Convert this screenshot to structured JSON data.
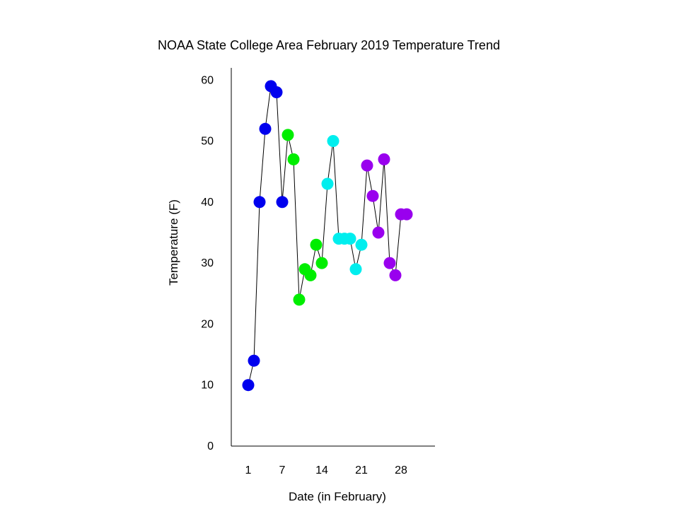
{
  "chart_data": {
    "type": "scatter",
    "title": "NOAA State College Area February 2019 Temperature Trend",
    "xlabel": "Date (in February)",
    "ylabel": "Temperature (F)",
    "xlim": [
      -2,
      34
    ],
    "ylim": [
      0,
      62
    ],
    "x_ticks": [
      {
        "value": 1,
        "label": "1"
      },
      {
        "value": 7,
        "label": "7"
      },
      {
        "value": 14,
        "label": "14"
      },
      {
        "value": 21,
        "label": "21"
      },
      {
        "value": 28,
        "label": "28"
      }
    ],
    "y_ticks": [
      {
        "value": 0,
        "label": "0"
      },
      {
        "value": 10,
        "label": "10"
      },
      {
        "value": 20,
        "label": "20"
      },
      {
        "value": 30,
        "label": "30"
      },
      {
        "value": 40,
        "label": "40"
      },
      {
        "value": 50,
        "label": "50"
      },
      {
        "value": 60,
        "label": "60"
      }
    ],
    "grid": false,
    "line_color": "#000000",
    "series": [
      {
        "color": "#0000ee",
        "x": [
          1,
          2,
          3,
          4,
          5,
          6,
          7
        ],
        "y": [
          10,
          14,
          40,
          52,
          59,
          58,
          40
        ]
      },
      {
        "color": "#00ee00",
        "x": [
          8,
          9,
          10,
          11,
          12,
          13,
          14
        ],
        "y": [
          51,
          47,
          24,
          29,
          28,
          33,
          30
        ]
      },
      {
        "color": "#00eeee",
        "x": [
          15,
          16,
          17,
          18,
          19,
          20,
          21
        ],
        "y": [
          43,
          50,
          34,
          34,
          34,
          29,
          33
        ]
      },
      {
        "color": "#9900ee",
        "x": [
          22,
          23,
          24,
          25,
          26,
          27,
          28,
          29
        ],
        "y": [
          46,
          41,
          35,
          47,
          30,
          28,
          38,
          38
        ]
      }
    ]
  }
}
